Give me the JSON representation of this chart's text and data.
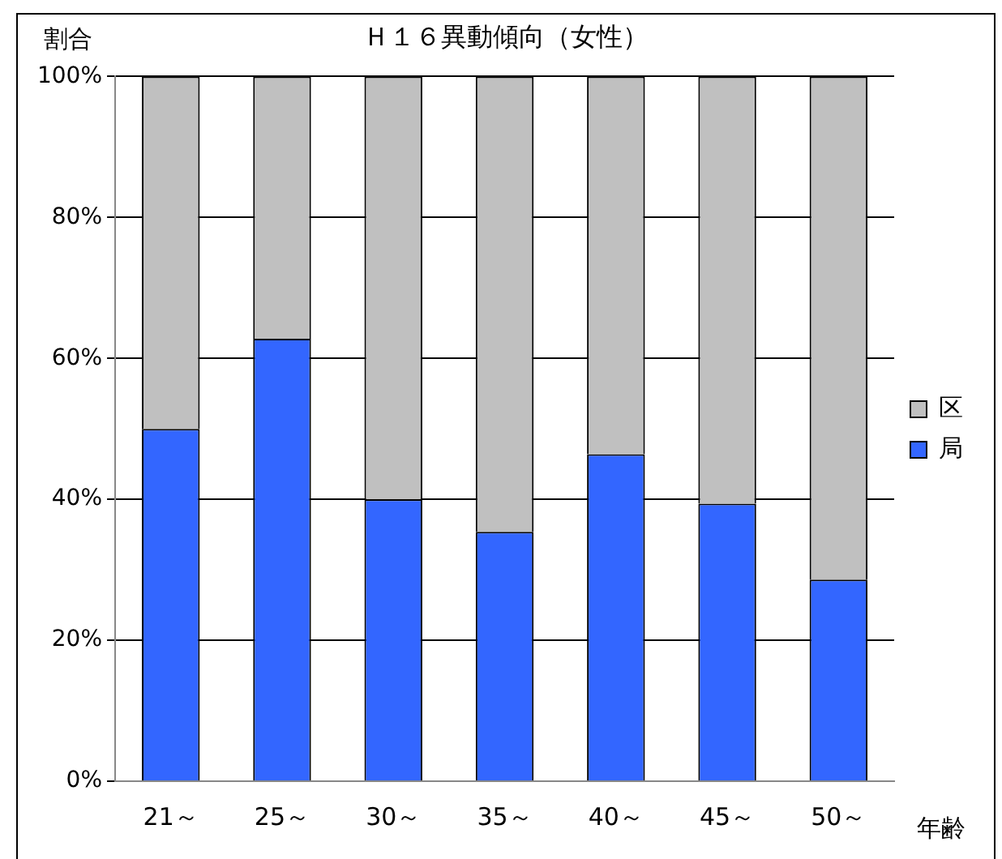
{
  "chart_data": {
    "type": "bar",
    "title": "Ｈ１６異動傾向（女性）",
    "ylabel": "割合",
    "xlabel": "年齢",
    "categories": [
      "21～",
      "25～",
      "30～",
      "35～",
      "40～",
      "45～",
      "50～"
    ],
    "series": [
      {
        "name": "局",
        "color": "#3366ff",
        "values": [
          50,
          62.8,
          40,
          35.4,
          46.4,
          39.4,
          28.6
        ]
      },
      {
        "name": "区",
        "color": "#c0c0c0",
        "values": [
          50,
          37.2,
          60,
          64.6,
          53.6,
          60.6,
          71.4
        ]
      }
    ],
    "stacked": true,
    "ylim": [
      0,
      100
    ],
    "yticks": [
      {
        "value": 0,
        "label": "0%"
      },
      {
        "value": 20,
        "label": "20%"
      },
      {
        "value": 40,
        "label": "40%"
      },
      {
        "value": 60,
        "label": "60%"
      },
      {
        "value": 80,
        "label": "80%"
      },
      {
        "value": 100,
        "label": "100%"
      }
    ],
    "grid": "y",
    "legend": "right"
  }
}
